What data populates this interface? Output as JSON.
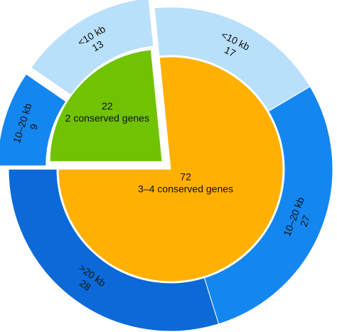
{
  "chart_data": {
    "type": "pie",
    "inner": [
      {
        "label": "2 conserved genes",
        "value": 22,
        "color": "#6fc300"
      },
      {
        "label": "3–4 conserved genes",
        "value": 72,
        "color": "#ffb000"
      }
    ],
    "outer": [
      {
        "group": "2 conserved genes",
        "label": "10–20 kb",
        "value": 9,
        "color": "#1486f0"
      },
      {
        "group": "2 conserved genes",
        "label": "<10 kb",
        "value": 13,
        "color": "#b9e0fa"
      },
      {
        "group": "3–4 conserved genes",
        "label": "<10 kb",
        "value": 17,
        "color": "#b9e0fa"
      },
      {
        "group": "3–4 conserved genes",
        "label": "10–20 kb",
        "value": 27,
        "color": "#1486f0"
      },
      {
        "group": "3–4 conserved genes",
        "label": ">20 kb",
        "value": 28,
        "color": "#0b6ad8"
      }
    ],
    "exploded_group": "2 conserved genes"
  }
}
